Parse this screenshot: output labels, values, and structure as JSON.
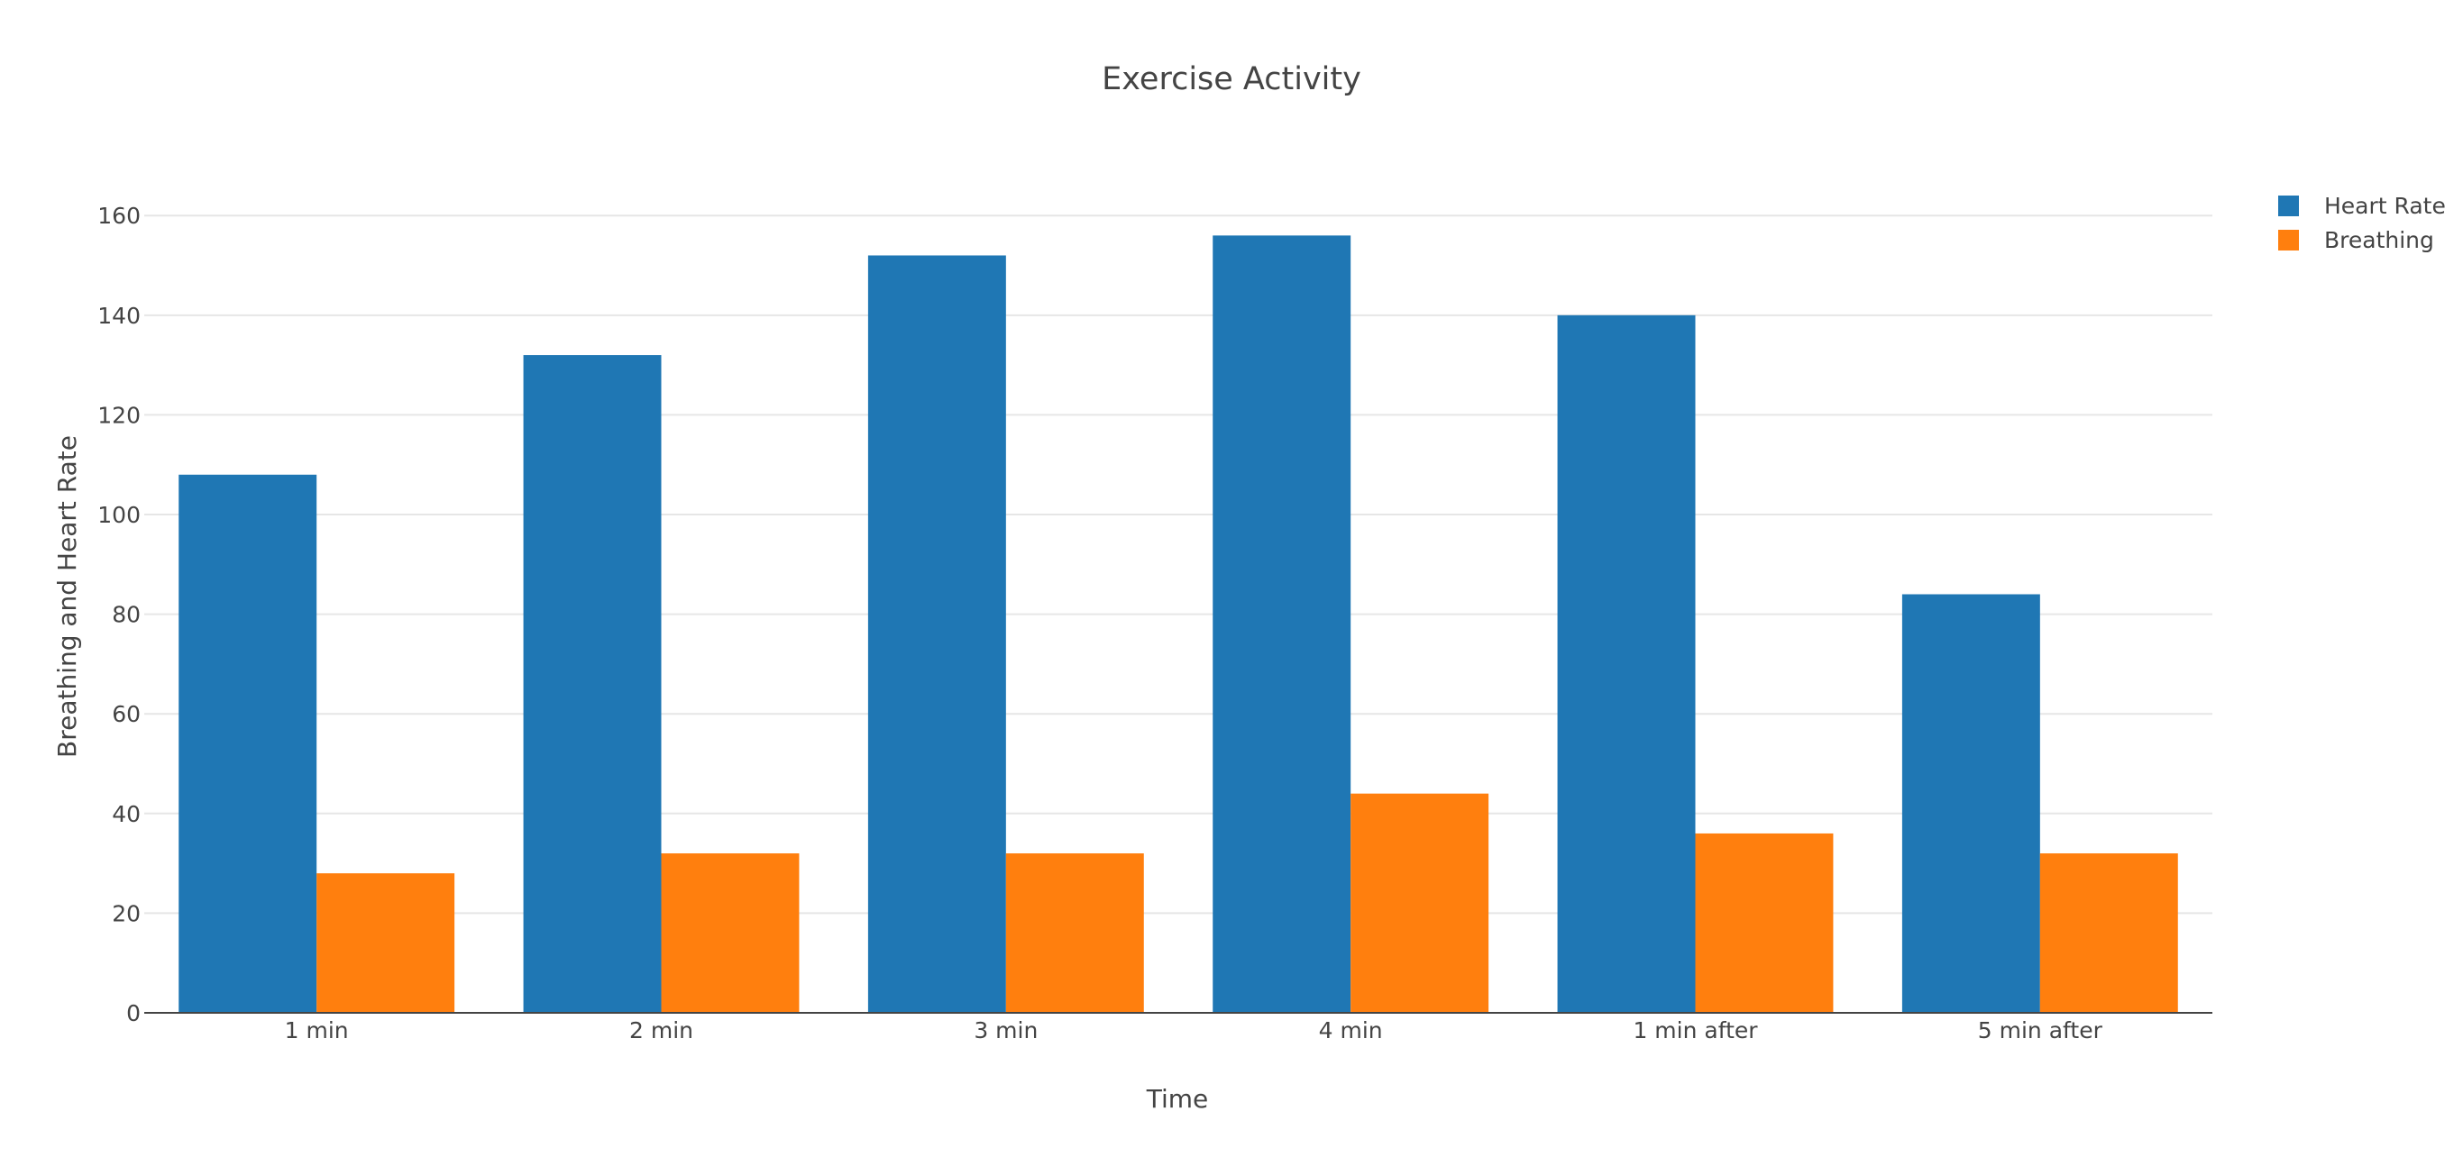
{
  "chart_data": {
    "type": "bar",
    "title": "Exercise Activity",
    "xlabel": "Time",
    "ylabel": "Breathing and Heart Rate",
    "categories": [
      "1 min",
      "2 min",
      "3 min",
      "4 min",
      "1 min after",
      "5 min after"
    ],
    "series": [
      {
        "name": "Heart Rate",
        "color": "#1f77b4",
        "values": [
          108,
          132,
          152,
          156,
          140,
          84
        ]
      },
      {
        "name": "Breathing",
        "color": "#ff7f0e",
        "values": [
          28,
          32,
          32,
          44,
          36,
          32
        ]
      }
    ],
    "ylim": [
      0,
      168
    ],
    "yticks": [
      0,
      20,
      40,
      60,
      80,
      100,
      120,
      140,
      160
    ],
    "grid": true,
    "legend_position": "top-right"
  }
}
